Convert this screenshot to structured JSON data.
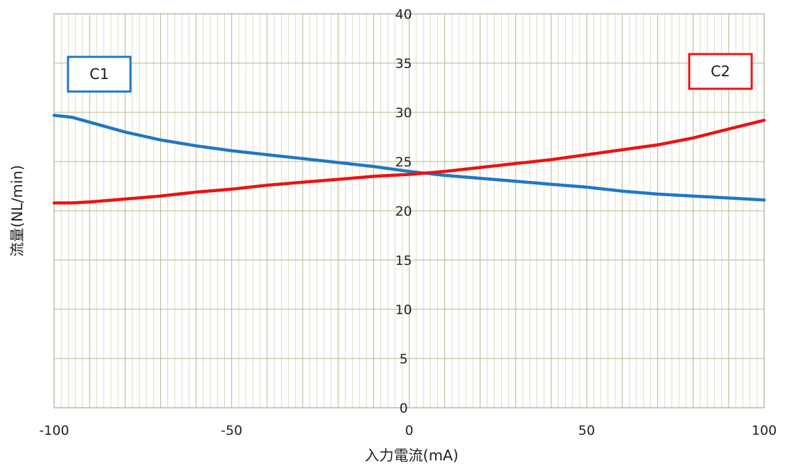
{
  "chart_data": {
    "type": "line",
    "title": "",
    "xlabel": "入力電流(mA)",
    "ylabel": "流量(NL/min)",
    "xlim": [
      -100,
      100
    ],
    "ylim": [
      0,
      40
    ],
    "x_ticks": [
      -100,
      -50,
      0,
      50,
      100
    ],
    "y_ticks": [
      0,
      5,
      10,
      15,
      20,
      25,
      30,
      35,
      40
    ],
    "x_tick_labels": [
      "-100",
      "-50",
      "0",
      "50",
      "100"
    ],
    "y_tick_labels": [
      "0",
      "5",
      "10",
      "15",
      "20",
      "25",
      "30",
      "35",
      "40"
    ],
    "grid": true,
    "grid_minor_x_step": 2,
    "grid_major_x_step": 10,
    "series": [
      {
        "name": "C1",
        "color": "#1f77c4",
        "legend_position": "top-left",
        "x": [
          -100,
          -95,
          -90,
          -80,
          -70,
          -60,
          -50,
          -40,
          -30,
          -20,
          -10,
          0,
          10,
          20,
          30,
          40,
          50,
          60,
          70,
          80,
          90,
          100
        ],
        "y": [
          29.7,
          29.5,
          29.0,
          28.0,
          27.2,
          26.6,
          26.1,
          25.7,
          25.3,
          24.9,
          24.5,
          24.0,
          23.6,
          23.3,
          23.0,
          22.7,
          22.4,
          22.0,
          21.7,
          21.5,
          21.3,
          21.1
        ]
      },
      {
        "name": "C2",
        "color": "#ee1111",
        "legend_position": "top-right",
        "x": [
          -100,
          -95,
          -90,
          -80,
          -70,
          -60,
          -50,
          -40,
          -30,
          -20,
          -10,
          0,
          10,
          20,
          30,
          40,
          50,
          60,
          70,
          80,
          90,
          100
        ],
        "y": [
          20.8,
          20.8,
          20.9,
          21.2,
          21.5,
          21.9,
          22.2,
          22.6,
          22.9,
          23.2,
          23.5,
          23.7,
          24.0,
          24.4,
          24.8,
          25.2,
          25.7,
          26.2,
          26.7,
          27.4,
          28.3,
          29.2
        ]
      }
    ]
  }
}
